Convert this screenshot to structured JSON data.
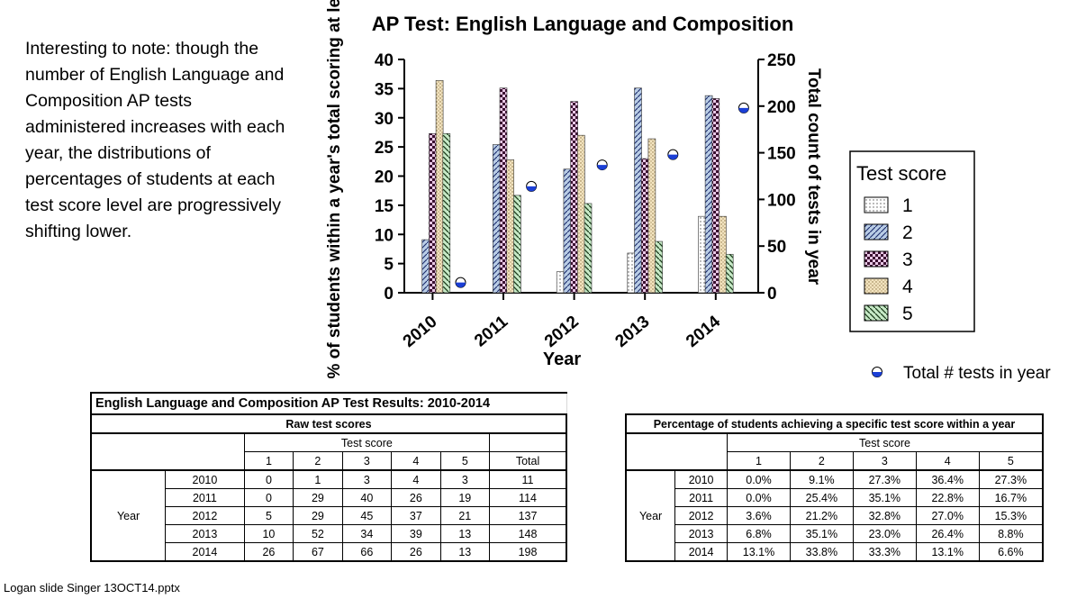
{
  "note": "Interesting to note: though the number of English Language and Composition AP tests administered increases with each year, the distributions of percentages of students at each test score level are progressively shifting lower.",
  "footer": "Logan slide Singer 13OCT14.pptx",
  "chart_data": {
    "type": "bar",
    "title": "AP Test: English Language and Composition",
    "xlabel": "Year",
    "ylabel": "% of students within a year's total scoring at level",
    "y2label": "Total count of tests in year",
    "categories": [
      "2010",
      "2011",
      "2012",
      "2013",
      "2014"
    ],
    "ylim": [
      0,
      40
    ],
    "yticks": [
      0,
      5,
      10,
      15,
      20,
      25,
      30,
      35,
      40
    ],
    "y2lim": [
      0,
      250
    ],
    "y2ticks": [
      0,
      50,
      100,
      150,
      200,
      250
    ],
    "legend_title": "Test score",
    "legend_position": "right",
    "series": [
      {
        "name": "1",
        "values": [
          0.0,
          0.0,
          3.6,
          6.8,
          13.1
        ],
        "pattern": "dots",
        "color": "#ffffff"
      },
      {
        "name": "2",
        "values": [
          9.1,
          25.4,
          21.2,
          35.1,
          33.8
        ],
        "pattern": "diag",
        "color": "#b9cde6"
      },
      {
        "name": "3",
        "values": [
          27.3,
          35.1,
          32.8,
          23.0,
          33.3
        ],
        "pattern": "checker",
        "color": "#e9c8e6"
      },
      {
        "name": "4",
        "values": [
          36.4,
          22.8,
          27.0,
          26.4,
          13.1
        ],
        "pattern": "speckle",
        "color": "#f3e4c0"
      },
      {
        "name": "5",
        "values": [
          27.3,
          16.7,
          15.3,
          8.8,
          6.6
        ],
        "pattern": "diag-green",
        "color": "#c6e9c6"
      }
    ],
    "secondary_series": {
      "name": "Total # tests in year",
      "axis": "right",
      "type": "scatter",
      "values": [
        11,
        114,
        137,
        148,
        198
      ],
      "color": "#1b3fd6"
    }
  },
  "raw_table": {
    "title": "English Language and Composition AP Test Results: 2010-2014",
    "subtitle": "Raw test scores",
    "group_header": "Test score",
    "year_label": "Year",
    "columns": [
      "1",
      "2",
      "3",
      "4",
      "5",
      "Total"
    ],
    "rows": [
      {
        "year": "2010",
        "values": [
          "0",
          "1",
          "3",
          "4",
          "3",
          "11"
        ]
      },
      {
        "year": "2011",
        "values": [
          "0",
          "29",
          "40",
          "26",
          "19",
          "114"
        ]
      },
      {
        "year": "2012",
        "values": [
          "5",
          "29",
          "45",
          "37",
          "21",
          "137"
        ]
      },
      {
        "year": "2013",
        "values": [
          "10",
          "52",
          "34",
          "39",
          "13",
          "148"
        ]
      },
      {
        "year": "2014",
        "values": [
          "26",
          "67",
          "66",
          "26",
          "13",
          "198"
        ]
      }
    ]
  },
  "pct_table": {
    "title": "Percentage of students achieving a specific test score within a year",
    "group_header": "Test score",
    "year_label": "Year",
    "columns": [
      "1",
      "2",
      "3",
      "4",
      "5"
    ],
    "rows": [
      {
        "year": "2010",
        "values": [
          "0.0%",
          "9.1%",
          "27.3%",
          "36.4%",
          "27.3%"
        ]
      },
      {
        "year": "2011",
        "values": [
          "0.0%",
          "25.4%",
          "35.1%",
          "22.8%",
          "16.7%"
        ]
      },
      {
        "year": "2012",
        "values": [
          "3.6%",
          "21.2%",
          "32.8%",
          "27.0%",
          "15.3%"
        ]
      },
      {
        "year": "2013",
        "values": [
          "6.8%",
          "35.1%",
          "23.0%",
          "26.4%",
          "8.8%"
        ]
      },
      {
        "year": "2014",
        "values": [
          "13.1%",
          "33.8%",
          "33.3%",
          "13.1%",
          "6.6%"
        ]
      }
    ]
  }
}
